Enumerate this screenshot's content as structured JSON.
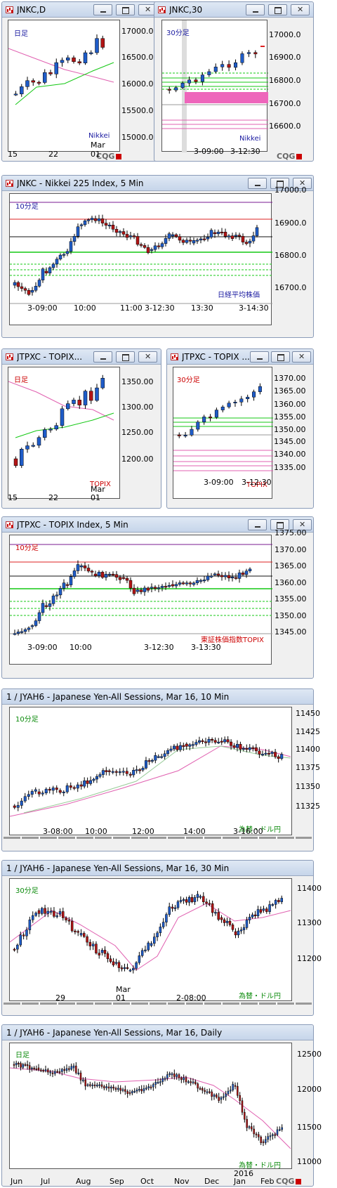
{
  "colors": {
    "up": "#1f5cc8",
    "down": "#b31515",
    "pink": "#e060b0",
    "green": "#14c814",
    "red": "#dd2222",
    "purple": "#7a1890",
    "black": "#111",
    "gray": "#999",
    "navy": "#1a1aa0"
  },
  "w1": {
    "title": "JNKC,D",
    "label": "日足",
    "legend": "Nikkei",
    "yt": [
      "17000.0",
      "16500.0",
      "16000.0",
      "15500.0",
      "15000.0"
    ],
    "xt": [
      "15",
      "22",
      "01"
    ],
    "xt2": "Mar",
    "brand": "CQG"
  },
  "w2": {
    "title": "JNKC,30",
    "label": "30分足",
    "legend": "Nikkei",
    "yt": [
      "17000.0",
      "16900.0",
      "16800.0",
      "16700.0",
      "16600.0"
    ],
    "xt": [
      "3-09:00",
      "3-12:30"
    ],
    "brand": "CQG"
  },
  "w3": {
    "title": "JNKC - Nikkei 225 Index, 5 Min",
    "label": "10分足",
    "legend": "日経平均株価",
    "yt": [
      "17000.0",
      "16900.0",
      "16800.0",
      "16700.0"
    ],
    "xt": [
      "3-09:00",
      "10:00",
      "11:00",
      "3-12:30",
      "13:30",
      "3-14:30"
    ]
  },
  "w4": {
    "title": "JTPXC - TOPIX...",
    "label": "日足",
    "legend": "TOPIX",
    "yt": [
      "1350.00",
      "1300.00",
      "1250.00",
      "1200.00"
    ],
    "xt": [
      "15",
      "22",
      "01"
    ],
    "xt2": "Mar"
  },
  "w5": {
    "title": "JTPXC - TOPIX ...",
    "label": "30分足",
    "legend": "TOPIX",
    "yt": [
      "1370.00",
      "1365.00",
      "1360.00",
      "1355.00",
      "1350.00",
      "1345.00",
      "1340.00",
      "1335.00"
    ],
    "xt": [
      "3-09:00",
      "3-12:30"
    ]
  },
  "w6": {
    "title": "JTPXC - TOPIX Index, 5 Min",
    "label": "10分足",
    "legend": "東証株価指数TOPIX",
    "yt": [
      "1375.00",
      "1370.00",
      "1365.00",
      "1360.00",
      "1355.00",
      "1350.00",
      "1345.00"
    ],
    "xt": [
      "3-09:00",
      "10:00",
      "3-12:30",
      "3-13:30"
    ]
  },
  "w7": {
    "title": "1 / JYAH6 - Japanese Yen-All Sessions, Mar 16, 10 Min",
    "label": "10分足",
    "legend": "為替・ドル円",
    "yt": [
      "11450",
      "11425",
      "11400",
      "11375",
      "11350",
      "11325"
    ],
    "xt": [
      "3-08:00",
      "10:00",
      "12:00",
      "14:00",
      "3-16:00"
    ]
  },
  "w8": {
    "title": "1 / JYAH6 - Japanese Yen-All Sessions, Mar 16, 30 Min",
    "label": "30分足",
    "legend": "為替・ドル円",
    "yt": [
      "11400",
      "11300",
      "11200"
    ],
    "xt": [
      "29",
      "01",
      "2-08:00"
    ],
    "xt2": "Mar"
  },
  "w9": {
    "title": "1 / JYAH6 - Japanese Yen-All Sessions, Mar 16, Daily",
    "label": "日足",
    "legend": "為替・ドル円",
    "yt": [
      "12500",
      "12000",
      "11500",
      "11000"
    ],
    "xt": [
      "Jun",
      "Jul",
      "Aug",
      "Sep",
      "Oct",
      "Nov",
      "Dec",
      "Jan",
      "Feb"
    ],
    "xt2": "2016",
    "brand": "CQG"
  }
}
